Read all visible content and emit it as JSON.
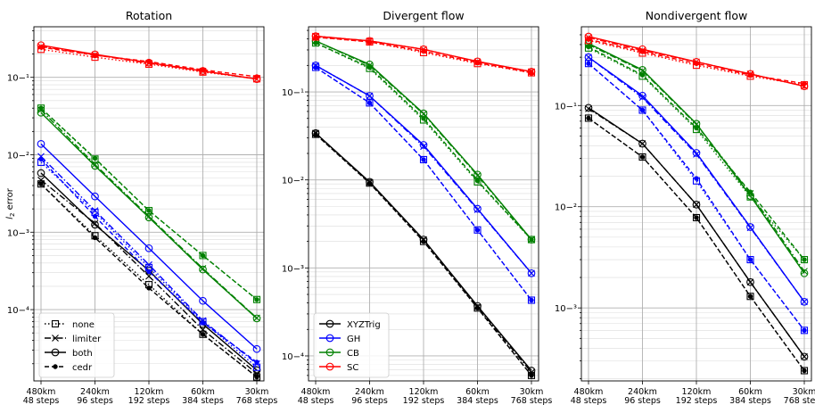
{
  "chart_data": [
    {
      "type": "line",
      "title": "Rotation",
      "ylabel": "l2 error",
      "ylim": [
        1.2e-05,
        0.45
      ],
      "yscale": "log",
      "grid": true,
      "categories": [
        "480km\n48 steps",
        "240km\n96 steps",
        "120km\n192 steps",
        "60km\n384 steps",
        "30km\n768 steps"
      ],
      "legend": {
        "placement": "bottom-left",
        "entries": [
          {
            "label": "none",
            "linestyle": "dotted",
            "marker": "square"
          },
          {
            "label": "limiter",
            "linestyle": "dashdot",
            "marker": "x"
          },
          {
            "label": "both",
            "linestyle": "solid",
            "marker": "circle"
          },
          {
            "label": "cedr",
            "linestyle": "dashed",
            "marker": "dot"
          }
        ]
      },
      "series": [
        {
          "group": "XYZTrig",
          "variant": "none",
          "values": [
            0.0042,
            0.0009,
            0.00021,
            4.8e-05,
            1.35e-05
          ]
        },
        {
          "group": "XYZTrig",
          "variant": "limiter",
          "values": [
            0.0047,
            0.0013,
            0.00027,
            5.5e-05,
            1.5e-05
          ]
        },
        {
          "group": "XYZTrig",
          "variant": "both",
          "values": [
            0.0058,
            0.00125,
            0.00032,
            6.5e-05,
            1.65e-05
          ]
        },
        {
          "group": "XYZTrig",
          "variant": "cedr",
          "values": [
            0.0042,
            0.00085,
            0.00019,
            4.8e-05,
            1.35e-05
          ]
        },
        {
          "group": "GH",
          "variant": "none",
          "values": [
            0.008,
            0.0018,
            0.00035,
            7e-05,
            1.8e-05
          ]
        },
        {
          "group": "GH",
          "variant": "limiter",
          "values": [
            0.0095,
            0.0019,
            0.00038,
            7.2e-05,
            2e-05
          ]
        },
        {
          "group": "GH",
          "variant": "both",
          "values": [
            0.0138,
            0.0029,
            0.00062,
            0.00013,
            3.1e-05
          ]
        },
        {
          "group": "GH",
          "variant": "cedr",
          "values": [
            0.0088,
            0.0016,
            0.00031,
            6.8e-05,
            2.1e-05
          ]
        },
        {
          "group": "CB",
          "variant": "none",
          "values": [
            0.04,
            0.0088,
            0.0019,
            0.0005,
            0.000135
          ]
        },
        {
          "group": "CB",
          "variant": "limiter",
          "values": [
            0.038,
            0.0075,
            0.0016,
            0.00034,
            7.8e-05
          ]
        },
        {
          "group": "CB",
          "variant": "both",
          "values": [
            0.035,
            0.0072,
            0.00155,
            0.00033,
            7.7e-05
          ]
        },
        {
          "group": "CB",
          "variant": "cedr",
          "values": [
            0.04,
            0.009,
            0.0019,
            0.0005,
            0.000135
          ]
        },
        {
          "group": "SC",
          "variant": "none",
          "values": [
            0.23,
            0.182,
            0.148,
            0.117,
            0.096
          ]
        },
        {
          "group": "SC",
          "variant": "limiter",
          "values": [
            0.25,
            0.195,
            0.152,
            0.12,
            0.095
          ]
        },
        {
          "group": "SC",
          "variant": "both",
          "values": [
            0.26,
            0.198,
            0.155,
            0.121,
            0.095
          ]
        },
        {
          "group": "SC",
          "variant": "cedr",
          "values": [
            0.245,
            0.193,
            0.16,
            0.125,
            0.102
          ]
        }
      ]
    },
    {
      "type": "line",
      "title": "Divergent flow",
      "ylabel": "",
      "ylim": [
        5.2e-05,
        0.55
      ],
      "yscale": "log",
      "grid": true,
      "categories": [
        "480km\n48 steps",
        "240km\n96 steps",
        "120km\n192 steps",
        "60km\n384 steps",
        "30km\n768 steps"
      ],
      "legend": {
        "placement": "bottom-left",
        "entries": [
          {
            "label": "XYZTrig",
            "color": "#000000",
            "marker": "circle"
          },
          {
            "label": "GH",
            "color": "#0000ff",
            "marker": "circle"
          },
          {
            "label": "CB",
            "color": "#008000",
            "marker": "circle"
          },
          {
            "label": "SC",
            "color": "#ff0000",
            "marker": "circle"
          }
        ]
      },
      "series": [
        {
          "group": "XYZTrig",
          "variant": "none",
          "values": [
            0.033,
            0.0092,
            0.002,
            0.00035,
            6e-05
          ]
        },
        {
          "group": "XYZTrig",
          "variant": "limiter",
          "values": [
            0.034,
            0.0094,
            0.0021,
            0.00036,
            6.5e-05
          ]
        },
        {
          "group": "XYZTrig",
          "variant": "both",
          "values": [
            0.034,
            0.0095,
            0.0021,
            0.00037,
            6.8e-05
          ]
        },
        {
          "group": "XYZTrig",
          "variant": "cedr",
          "values": [
            0.033,
            0.0092,
            0.002,
            0.00035,
            6e-05
          ]
        },
        {
          "group": "GH",
          "variant": "none",
          "values": [
            0.19,
            0.075,
            0.017,
            0.0027,
            0.00043
          ]
        },
        {
          "group": "GH",
          "variant": "limiter",
          "values": [
            0.2,
            0.09,
            0.024,
            0.0046,
            0.00087
          ]
        },
        {
          "group": "GH",
          "variant": "both",
          "values": [
            0.2,
            0.09,
            0.025,
            0.0047,
            0.00087
          ]
        },
        {
          "group": "GH",
          "variant": "cedr",
          "values": [
            0.19,
            0.075,
            0.017,
            0.0027,
            0.00043
          ]
        },
        {
          "group": "CB",
          "variant": "none",
          "values": [
            0.36,
            0.185,
            0.048,
            0.0095,
            0.0021
          ]
        },
        {
          "group": "CB",
          "variant": "limiter",
          "values": [
            0.38,
            0.2,
            0.056,
            0.0112,
            0.0021
          ]
        },
        {
          "group": "CB",
          "variant": "both",
          "values": [
            0.38,
            0.205,
            0.057,
            0.0115,
            0.0021
          ]
        },
        {
          "group": "CB",
          "variant": "cedr",
          "values": [
            0.36,
            0.19,
            0.05,
            0.0098,
            0.0021
          ]
        },
        {
          "group": "SC",
          "variant": "none",
          "values": [
            0.42,
            0.37,
            0.28,
            0.21,
            0.165
          ]
        },
        {
          "group": "SC",
          "variant": "limiter",
          "values": [
            0.43,
            0.38,
            0.305,
            0.22,
            0.17
          ]
        },
        {
          "group": "SC",
          "variant": "both",
          "values": [
            0.43,
            0.38,
            0.305,
            0.222,
            0.17
          ]
        },
        {
          "group": "SC",
          "variant": "cedr",
          "values": [
            0.42,
            0.37,
            0.29,
            0.215,
            0.165
          ]
        }
      ]
    },
    {
      "type": "line",
      "title": "Nondivergent flow",
      "ylabel": "",
      "ylim": [
        0.00019,
        0.6
      ],
      "yscale": "log",
      "grid": true,
      "categories": [
        "480km\n48 steps",
        "240km\n96 steps",
        "120km\n192 steps",
        "60km\n384 steps",
        "30km\n768 steps"
      ],
      "series": [
        {
          "group": "XYZTrig",
          "variant": "none",
          "values": [
            0.075,
            0.031,
            0.0078,
            0.0013,
            0.00024
          ]
        },
        {
          "group": "XYZTrig",
          "variant": "limiter",
          "values": [
            0.093,
            0.042,
            0.0105,
            0.0018,
            0.00033
          ]
        },
        {
          "group": "XYZTrig",
          "variant": "both",
          "values": [
            0.095,
            0.042,
            0.0105,
            0.0018,
            0.00033
          ]
        },
        {
          "group": "XYZTrig",
          "variant": "cedr",
          "values": [
            0.075,
            0.031,
            0.0078,
            0.0013,
            0.00024
          ]
        },
        {
          "group": "GH",
          "variant": "none",
          "values": [
            0.26,
            0.09,
            0.018,
            0.003,
            0.0006
          ]
        },
        {
          "group": "GH",
          "variant": "limiter",
          "values": [
            0.3,
            0.12,
            0.033,
            0.0062,
            0.00115
          ]
        },
        {
          "group": "GH",
          "variant": "both",
          "values": [
            0.3,
            0.125,
            0.034,
            0.0063,
            0.00115
          ]
        },
        {
          "group": "GH",
          "variant": "cedr",
          "values": [
            0.26,
            0.09,
            0.019,
            0.003,
            0.0006
          ]
        },
        {
          "group": "CB",
          "variant": "none",
          "values": [
            0.37,
            0.195,
            0.058,
            0.0125,
            0.003
          ]
        },
        {
          "group": "CB",
          "variant": "limiter",
          "values": [
            0.4,
            0.22,
            0.065,
            0.0135,
            0.0023
          ]
        },
        {
          "group": "CB",
          "variant": "both",
          "values": [
            0.41,
            0.225,
            0.066,
            0.0128,
            0.0022
          ]
        },
        {
          "group": "CB",
          "variant": "cedr",
          "values": [
            0.38,
            0.2,
            0.06,
            0.014,
            0.003
          ]
        },
        {
          "group": "SC",
          "variant": "none",
          "values": [
            0.44,
            0.33,
            0.25,
            0.195,
            0.16
          ]
        },
        {
          "group": "SC",
          "variant": "limiter",
          "values": [
            0.47,
            0.35,
            0.27,
            0.205,
            0.155
          ]
        },
        {
          "group": "SC",
          "variant": "both",
          "values": [
            0.48,
            0.36,
            0.27,
            0.205,
            0.155
          ]
        },
        {
          "group": "SC",
          "variant": "cedr",
          "values": [
            0.45,
            0.34,
            0.26,
            0.2,
            0.165
          ]
        }
      ]
    }
  ],
  "colors": {
    "XYZTrig": "#000000",
    "GH": "#0000ff",
    "CB": "#008000",
    "SC": "#ff0000"
  }
}
